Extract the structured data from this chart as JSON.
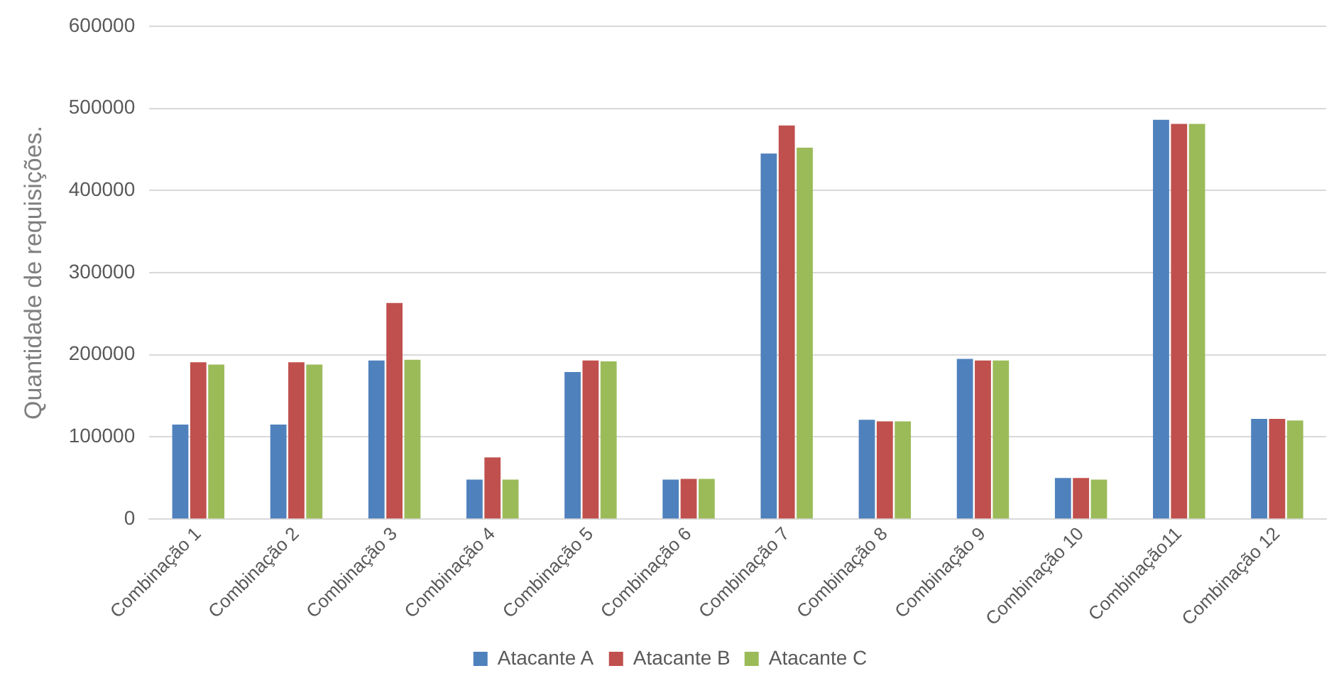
{
  "chart_data": {
    "type": "bar",
    "ylabel": "Quantidade de requisições.",
    "categories": [
      "Combinação 1",
      "Combinação 2",
      "Combinação 3",
      "Combinação 4",
      "Combinação 5",
      "Combinação 6",
      "Combinação 7",
      "Combinação 8",
      "Combinação 9",
      "Combinação 10",
      "Combinação11",
      "Combinação 12"
    ],
    "series": [
      {
        "name": "Atacante A",
        "color": "#4f81bd",
        "values": [
          115000,
          115000,
          193000,
          48000,
          179000,
          48000,
          445000,
          121000,
          195000,
          50000,
          486000,
          122000
        ]
      },
      {
        "name": "Atacante B",
        "color": "#c0504d",
        "values": [
          191000,
          191000,
          263000,
          75000,
          193000,
          49000,
          479000,
          119000,
          193000,
          50000,
          481000,
          122000
        ]
      },
      {
        "name": "Atacante C",
        "color": "#9bbb59",
        "values": [
          188000,
          188000,
          194000,
          48000,
          192000,
          49000,
          452000,
          119000,
          193000,
          48000,
          481000,
          120000
        ]
      }
    ],
    "ylim": [
      0,
      600000
    ],
    "yticks": [
      0,
      100000,
      200000,
      300000,
      400000,
      500000,
      600000
    ],
    "grid": "y",
    "legend": "bottom"
  }
}
